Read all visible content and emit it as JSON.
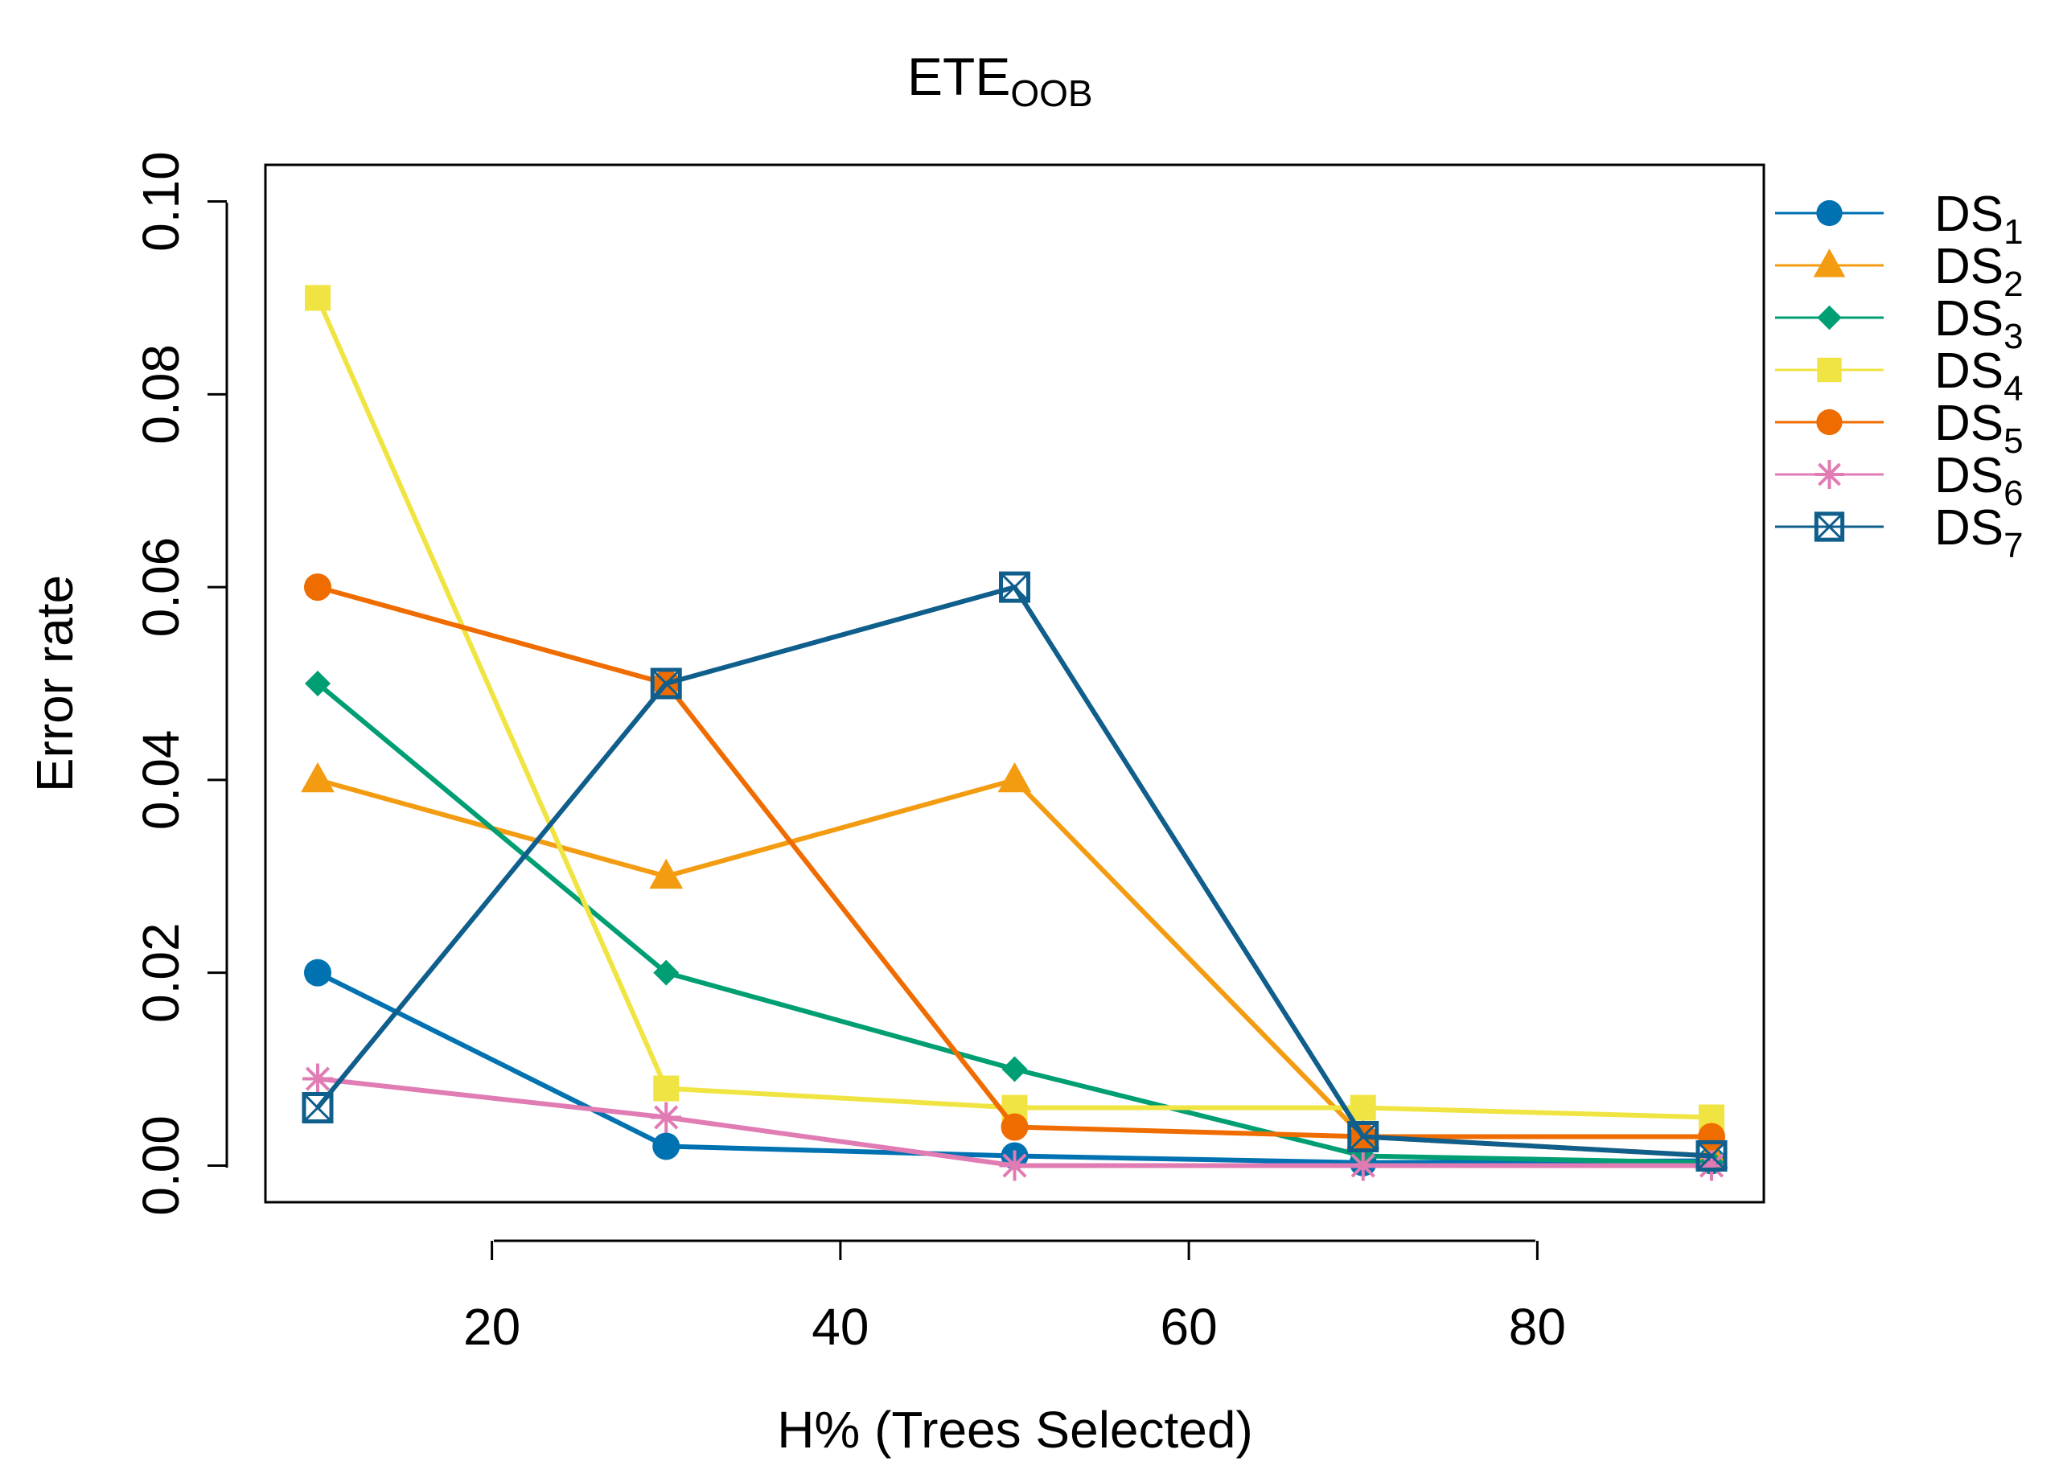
{
  "chart_data": {
    "type": "line",
    "title": "ETE",
    "title_sub": "OOB",
    "xlabel": "H% (Trees Selected)",
    "ylabel": "Error rate",
    "xlim": [
      7,
      93
    ],
    "ylim": [
      -0.0038,
      0.1038
    ],
    "x": [
      10,
      30,
      50,
      70,
      90
    ],
    "xticks": [
      20,
      40,
      60,
      80
    ],
    "xtick_labels": [
      "20",
      "40",
      "60",
      "80"
    ],
    "yticks": [
      0.0,
      0.02,
      0.04,
      0.06,
      0.08,
      0.1
    ],
    "ytick_labels": [
      "0.00",
      "0.02",
      "0.04",
      "0.06",
      "0.08",
      "0.10"
    ],
    "legend_position": "right-outside",
    "series": [
      {
        "name": "DS",
        "sub": "1",
        "color": "#0072B2",
        "marker": "circle",
        "values": [
          0.02,
          0.002,
          0.001,
          0.0003,
          0.0005
        ]
      },
      {
        "name": "DS",
        "sub": "2",
        "color": "#F39C12",
        "marker": "triangle",
        "values": [
          0.04,
          0.03,
          0.04,
          0.003,
          0.001
        ]
      },
      {
        "name": "DS",
        "sub": "3",
        "color": "#009E73",
        "marker": "diamond",
        "values": [
          0.05,
          0.02,
          0.01,
          0.001,
          0.0003
        ]
      },
      {
        "name": "DS",
        "sub": "4",
        "color": "#F0E442",
        "marker": "square",
        "values": [
          0.09,
          0.008,
          0.006,
          0.006,
          0.005
        ]
      },
      {
        "name": "DS",
        "sub": "5",
        "color": "#EF6C00",
        "marker": "circle",
        "values": [
          0.06,
          0.05,
          0.004,
          0.003,
          0.003
        ]
      },
      {
        "name": "DS",
        "sub": "6",
        "color": "#E07BB4",
        "marker": "asterisk",
        "values": [
          0.009,
          0.005,
          0.0,
          0.0,
          0.0
        ]
      },
      {
        "name": "DS",
        "sub": "7",
        "color": "#0F5E8C",
        "marker": "boxx",
        "values": [
          0.006,
          0.05,
          0.06,
          0.003,
          0.001
        ]
      }
    ]
  }
}
